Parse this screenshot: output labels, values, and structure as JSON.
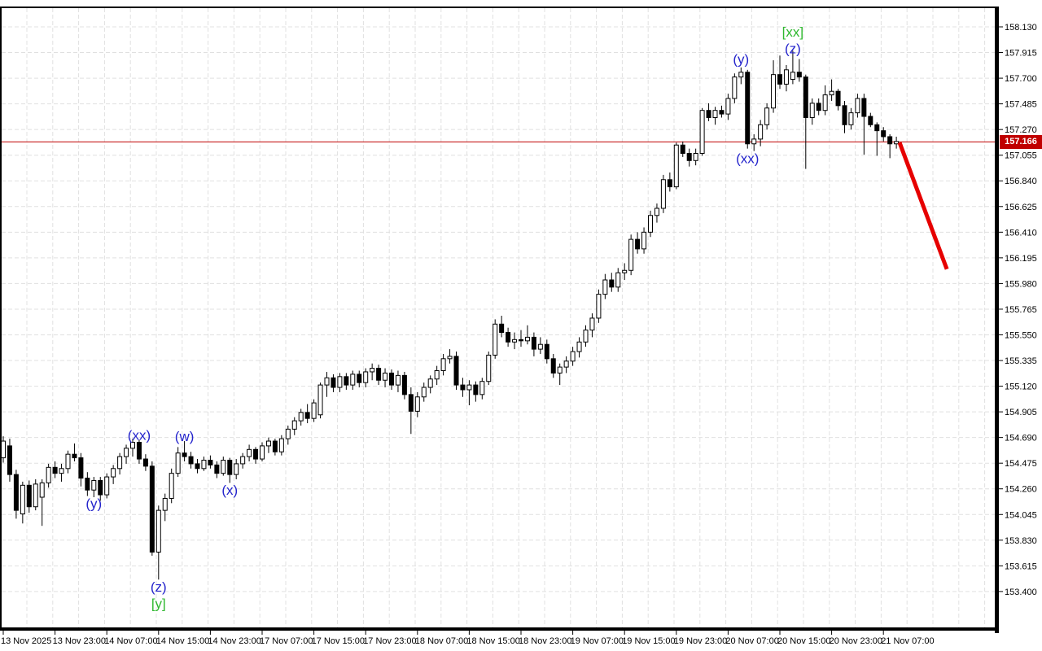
{
  "chart_data": {
    "type": "candlestick",
    "current_price": "157.166",
    "y_axis": {
      "ticks": [
        "153.400",
        "153.615",
        "153.830",
        "154.045",
        "154.260",
        "154.475",
        "154.690",
        "154.905",
        "155.120",
        "155.335",
        "155.550",
        "155.765",
        "155.980",
        "156.195",
        "156.410",
        "156.625",
        "156.840",
        "157.055",
        "157.270",
        "157.485",
        "157.700",
        "157.915",
        "158.130"
      ],
      "min": 153.4,
      "max": 158.13,
      "step": 0.215
    },
    "x_axis": {
      "labels": [
        "13 Nov 2025",
        "13 Nov 23:00",
        "14 Nov 07:00",
        "14 Nov 15:00",
        "14 Nov 23:00",
        "17 Nov 07:00",
        "17 Nov 15:00",
        "17 Nov 23:00",
        "18 Nov 07:00",
        "18 Nov 15:00",
        "18 Nov 23:00",
        "19 Nov 07:00",
        "19 Nov 15:00",
        "19 Nov 23:00",
        "20 Nov 07:00",
        "20 Nov 15:00",
        "20 Nov 23:00",
        "21 Nov 07:00"
      ],
      "candles_per_label": 8
    },
    "horizontal_line": {
      "price": 157.166
    },
    "forecast_line": {
      "from_index": 138.5,
      "from_price": 157.16,
      "to_index": 145.8,
      "to_price": 156.1,
      "width": 5
    },
    "annotations": [
      {
        "text": "(y)",
        "index": 14,
        "price": 154.14,
        "color": "blue"
      },
      {
        "text": "(xx)",
        "index": 21,
        "price": 154.71,
        "color": "blue"
      },
      {
        "text": "(z)",
        "index": 24,
        "price": 153.44,
        "color": "blue"
      },
      {
        "text": "[y]",
        "index": 24,
        "price": 153.3,
        "color": "green"
      },
      {
        "text": "(w)",
        "index": 28,
        "price": 154.7,
        "color": "blue"
      },
      {
        "text": "(x)",
        "index": 35,
        "price": 154.25,
        "color": "blue"
      },
      {
        "text": "(y)",
        "index": 114,
        "price": 157.86,
        "color": "blue"
      },
      {
        "text": "(xx)",
        "index": 115,
        "price": 157.03,
        "color": "blue"
      },
      {
        "text": "(z)",
        "index": 122,
        "price": 157.95,
        "color": "blue"
      },
      {
        "text": "[xx]",
        "index": 122,
        "price": 158.09,
        "color": "green"
      }
    ],
    "colors": {
      "up_fill": "#ffffff",
      "down_fill": "#000000",
      "outline": "#000000",
      "grid": "#e0e0e0",
      "frame": "#000000",
      "axis_text": "#000000",
      "red": "#c00000",
      "forecast_red": "#e60000",
      "blue": "#2424cc",
      "green": "#2eb82e",
      "badge_bg": "#c00000",
      "badge_text": "#ffffff"
    },
    "candles": [
      [
        154.52,
        154.7,
        154.48,
        154.66
      ],
      [
        154.62,
        154.68,
        154.32,
        154.38
      ],
      [
        154.38,
        154.42,
        154.01,
        154.08
      ],
      [
        154.05,
        154.32,
        153.97,
        154.29
      ],
      [
        154.29,
        154.33,
        154.06,
        154.11
      ],
      [
        154.11,
        154.34,
        154.08,
        154.3
      ],
      [
        154.19,
        154.34,
        153.95,
        154.31
      ],
      [
        154.31,
        154.47,
        154.27,
        154.44
      ],
      [
        154.44,
        154.49,
        154.35,
        154.39
      ],
      [
        154.39,
        154.47,
        154.32,
        154.43
      ],
      [
        154.43,
        154.58,
        154.39,
        154.55
      ],
      [
        154.55,
        154.64,
        154.49,
        154.52
      ],
      [
        154.52,
        154.56,
        154.28,
        154.35
      ],
      [
        154.35,
        154.4,
        154.2,
        154.25
      ],
      [
        154.25,
        154.36,
        154.19,
        154.33
      ],
      [
        154.33,
        154.36,
        154.16,
        154.21
      ],
      [
        154.21,
        154.39,
        154.18,
        154.36
      ],
      [
        154.36,
        154.46,
        154.3,
        154.43
      ],
      [
        154.43,
        154.56,
        154.38,
        154.53
      ],
      [
        154.53,
        154.63,
        154.47,
        154.6
      ],
      [
        154.6,
        154.68,
        154.53,
        154.65
      ],
      [
        154.65,
        154.67,
        154.47,
        154.51
      ],
      [
        154.51,
        154.55,
        154.41,
        154.45
      ],
      [
        154.45,
        154.49,
        153.7,
        153.73
      ],
      [
        153.73,
        154.12,
        153.5,
        154.08
      ],
      [
        154.08,
        154.22,
        153.99,
        154.18
      ],
      [
        154.18,
        154.43,
        154.14,
        154.39
      ],
      [
        154.39,
        154.61,
        154.36,
        154.56
      ],
      [
        154.56,
        154.66,
        154.49,
        154.53
      ],
      [
        154.53,
        154.57,
        154.43,
        154.47
      ],
      [
        154.47,
        154.51,
        154.39,
        154.43
      ],
      [
        154.43,
        154.53,
        154.41,
        154.5
      ],
      [
        154.5,
        154.54,
        154.43,
        154.46
      ],
      [
        154.46,
        154.49,
        154.35,
        154.39
      ],
      [
        154.39,
        154.53,
        154.37,
        154.5
      ],
      [
        154.5,
        154.52,
        154.31,
        154.38
      ],
      [
        154.38,
        154.51,
        154.34,
        154.47
      ],
      [
        154.47,
        154.56,
        154.43,
        154.53
      ],
      [
        154.53,
        154.63,
        154.49,
        154.59
      ],
      [
        154.59,
        154.61,
        154.47,
        154.51
      ],
      [
        154.51,
        154.65,
        154.49,
        154.62
      ],
      [
        154.62,
        154.69,
        154.56,
        154.66
      ],
      [
        154.66,
        154.68,
        154.54,
        154.57
      ],
      [
        154.57,
        154.71,
        154.54,
        154.68
      ],
      [
        154.68,
        154.79,
        154.63,
        154.76
      ],
      [
        154.76,
        154.86,
        154.71,
        154.83
      ],
      [
        154.83,
        154.93,
        154.79,
        154.9
      ],
      [
        154.9,
        154.97,
        154.81,
        154.85
      ],
      [
        154.85,
        155.01,
        154.82,
        154.98
      ],
      [
        154.88,
        155.15,
        154.85,
        155.13
      ],
      [
        155.13,
        155.24,
        155.03,
        155.19
      ],
      [
        155.19,
        155.22,
        155.07,
        155.11
      ],
      [
        155.11,
        155.23,
        155.07,
        155.2
      ],
      [
        155.2,
        155.23,
        155.09,
        155.13
      ],
      [
        155.13,
        155.25,
        155.09,
        155.22
      ],
      [
        155.22,
        155.25,
        155.11,
        155.15
      ],
      [
        155.15,
        155.27,
        155.11,
        155.24
      ],
      [
        155.24,
        155.31,
        155.17,
        155.27
      ],
      [
        155.27,
        155.3,
        155.13,
        155.17
      ],
      [
        155.17,
        155.27,
        155.11,
        155.23
      ],
      [
        155.23,
        155.26,
        155.09,
        155.13
      ],
      [
        155.13,
        155.25,
        155.07,
        155.21
      ],
      [
        155.21,
        155.24,
        155.01,
        155.05
      ],
      [
        155.05,
        155.11,
        154.72,
        154.91
      ],
      [
        154.91,
        155.07,
        154.86,
        155.03
      ],
      [
        155.03,
        155.15,
        154.99,
        155.11
      ],
      [
        155.11,
        155.21,
        155.06,
        155.18
      ],
      [
        155.18,
        155.29,
        155.13,
        155.25
      ],
      [
        155.25,
        155.39,
        155.21,
        155.35
      ],
      [
        155.35,
        155.43,
        155.31,
        155.37
      ],
      [
        155.37,
        155.41,
        155.09,
        155.13
      ],
      [
        155.13,
        155.19,
        155.03,
        155.09
      ],
      [
        155.09,
        155.17,
        154.96,
        155.13
      ],
      [
        155.13,
        155.16,
        154.99,
        155.05
      ],
      [
        155.05,
        155.19,
        155.01,
        155.16
      ],
      [
        155.16,
        155.41,
        155.13,
        155.38
      ],
      [
        155.38,
        155.68,
        155.35,
        155.64
      ],
      [
        155.64,
        155.71,
        155.53,
        155.57
      ],
      [
        155.57,
        155.61,
        155.45,
        155.49
      ],
      [
        155.49,
        155.57,
        155.43,
        155.51
      ],
      [
        155.51,
        155.59,
        155.45,
        155.5
      ],
      [
        155.5,
        155.63,
        155.47,
        155.53
      ],
      [
        155.53,
        155.57,
        155.37,
        155.43
      ],
      [
        155.43,
        155.53,
        155.39,
        155.47
      ],
      [
        155.47,
        155.51,
        155.31,
        155.35
      ],
      [
        155.35,
        155.39,
        155.19,
        155.23
      ],
      [
        155.23,
        155.31,
        155.13,
        155.28
      ],
      [
        155.28,
        155.37,
        155.23,
        155.33
      ],
      [
        155.33,
        155.45,
        155.29,
        155.41
      ],
      [
        155.41,
        155.53,
        155.36,
        155.49
      ],
      [
        155.49,
        155.63,
        155.45,
        155.59
      ],
      [
        155.59,
        155.73,
        155.53,
        155.69
      ],
      [
        155.69,
        155.93,
        155.65,
        155.89
      ],
      [
        155.89,
        156.06,
        155.85,
        156.01
      ],
      [
        156.01,
        156.07,
        155.91,
        155.95
      ],
      [
        155.95,
        156.11,
        155.91,
        156.07
      ],
      [
        156.07,
        156.15,
        156.01,
        156.09
      ],
      [
        156.09,
        156.39,
        156.05,
        156.35
      ],
      [
        156.35,
        156.41,
        156.23,
        156.27
      ],
      [
        156.27,
        156.45,
        156.23,
        156.41
      ],
      [
        156.41,
        156.59,
        156.37,
        156.55
      ],
      [
        156.55,
        156.65,
        156.49,
        156.61
      ],
      [
        156.61,
        156.89,
        156.57,
        156.85
      ],
      [
        156.85,
        156.91,
        156.75,
        156.79
      ],
      [
        156.79,
        157.16,
        156.77,
        157.14
      ],
      [
        157.14,
        157.17,
        157.04,
        157.07
      ],
      [
        157.07,
        157.11,
        156.96,
        157.01
      ],
      [
        157.01,
        157.11,
        156.97,
        157.07
      ],
      [
        157.07,
        157.45,
        157.05,
        157.43
      ],
      [
        157.43,
        157.49,
        157.34,
        157.37
      ],
      [
        157.37,
        157.46,
        157.31,
        157.43
      ],
      [
        157.43,
        157.47,
        157.37,
        157.4
      ],
      [
        157.4,
        157.57,
        157.35,
        157.53
      ],
      [
        157.53,
        157.74,
        157.49,
        157.71
      ],
      [
        157.71,
        157.79,
        157.65,
        157.75
      ],
      [
        157.75,
        157.77,
        157.11,
        157.15
      ],
      [
        157.15,
        157.23,
        157.09,
        157.19
      ],
      [
        157.19,
        157.35,
        157.13,
        157.31
      ],
      [
        157.31,
        157.49,
        157.27,
        157.45
      ],
      [
        157.45,
        157.85,
        157.41,
        157.73
      ],
      [
        157.73,
        157.89,
        157.61,
        157.65
      ],
      [
        157.65,
        157.81,
        157.59,
        157.77
      ],
      [
        157.69,
        157.93,
        157.65,
        157.75
      ],
      [
        157.75,
        157.86,
        157.67,
        157.71
      ],
      [
        157.71,
        157.73,
        156.94,
        157.37
      ],
      [
        157.37,
        157.53,
        157.31,
        157.49
      ],
      [
        157.49,
        157.53,
        157.39,
        157.43
      ],
      [
        157.43,
        157.64,
        157.39,
        157.56
      ],
      [
        157.56,
        157.69,
        157.51,
        157.59
      ],
      [
        157.59,
        157.61,
        157.43,
        157.47
      ],
      [
        157.47,
        157.51,
        157.24,
        157.31
      ],
      [
        157.31,
        157.45,
        157.27,
        157.41
      ],
      [
        157.41,
        157.57,
        157.37,
        157.53
      ],
      [
        157.53,
        157.57,
        157.06,
        157.38
      ],
      [
        157.38,
        157.41,
        157.29,
        157.31
      ],
      [
        157.31,
        157.33,
        157.05,
        157.26
      ],
      [
        157.26,
        157.29,
        157.17,
        157.21
      ],
      [
        157.21,
        157.23,
        157.03,
        157.15
      ],
      [
        157.15,
        157.21,
        157.11,
        157.17
      ]
    ]
  }
}
